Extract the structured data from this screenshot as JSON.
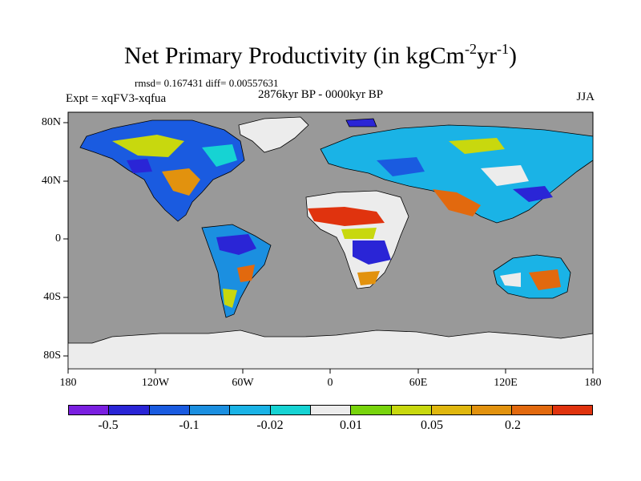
{
  "title": {
    "main": "Net Primary Productivity (in kgCm",
    "sup1": "-2",
    "mid": "yr",
    "sup2": "-1",
    "end": ")"
  },
  "stats": "rmsd= 0.167431 diff= 0.00557631",
  "experiment": "Expt = xqFV3-xqfua",
  "period": "2876kyr BP - 0000kyr BP",
  "season": "JJA",
  "y_labels": [
    "80N",
    "40N",
    "0",
    "40S",
    "80S"
  ],
  "x_labels": [
    "180",
    "120W",
    "60W",
    "0",
    "60E",
    "120E",
    "180"
  ],
  "colorbar": {
    "colors": [
      "#7a1fe0",
      "#2a25d6",
      "#1a5be0",
      "#1b8fe0",
      "#1ab3e6",
      "#16d3d3",
      "#ececec",
      "#78d40c",
      "#c8d80e",
      "#e0b70e",
      "#e2920e",
      "#e2690e",
      "#e0330e"
    ],
    "labels": [
      "-0.5",
      "-0.1",
      "-0.02",
      "0.01",
      "0.05",
      "0.2"
    ]
  },
  "legend_colors": {
    "ocean": "#999999",
    "ice": "#ececec",
    "coast": "#000000"
  }
}
